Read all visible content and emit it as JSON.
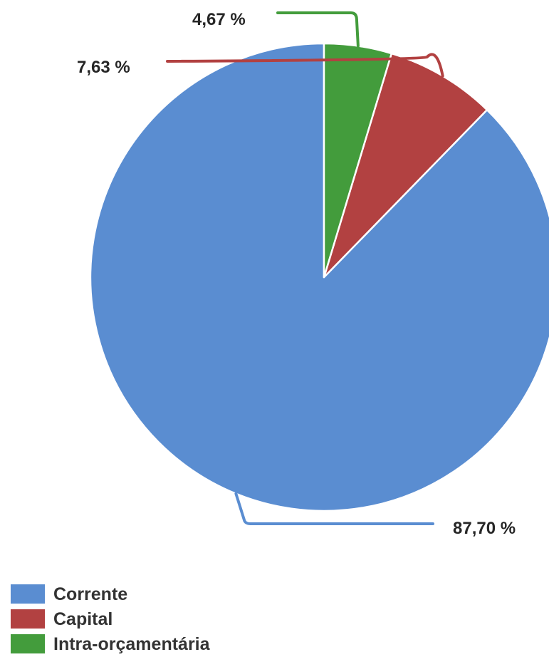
{
  "chart_data": {
    "type": "pie",
    "categories": [
      "Corrente",
      "Capital",
      "Intra-orçamentária"
    ],
    "values": [
      87.7,
      7.63,
      4.67
    ],
    "value_labels": [
      "87,70 %",
      "7,63 %",
      "4,67 %"
    ],
    "colors": [
      "#5a8dd1",
      "#b24141",
      "#439c3c"
    ],
    "start_angle_deg": 0,
    "direction": "counterclockwise",
    "legend_position": "bottom-left"
  }
}
